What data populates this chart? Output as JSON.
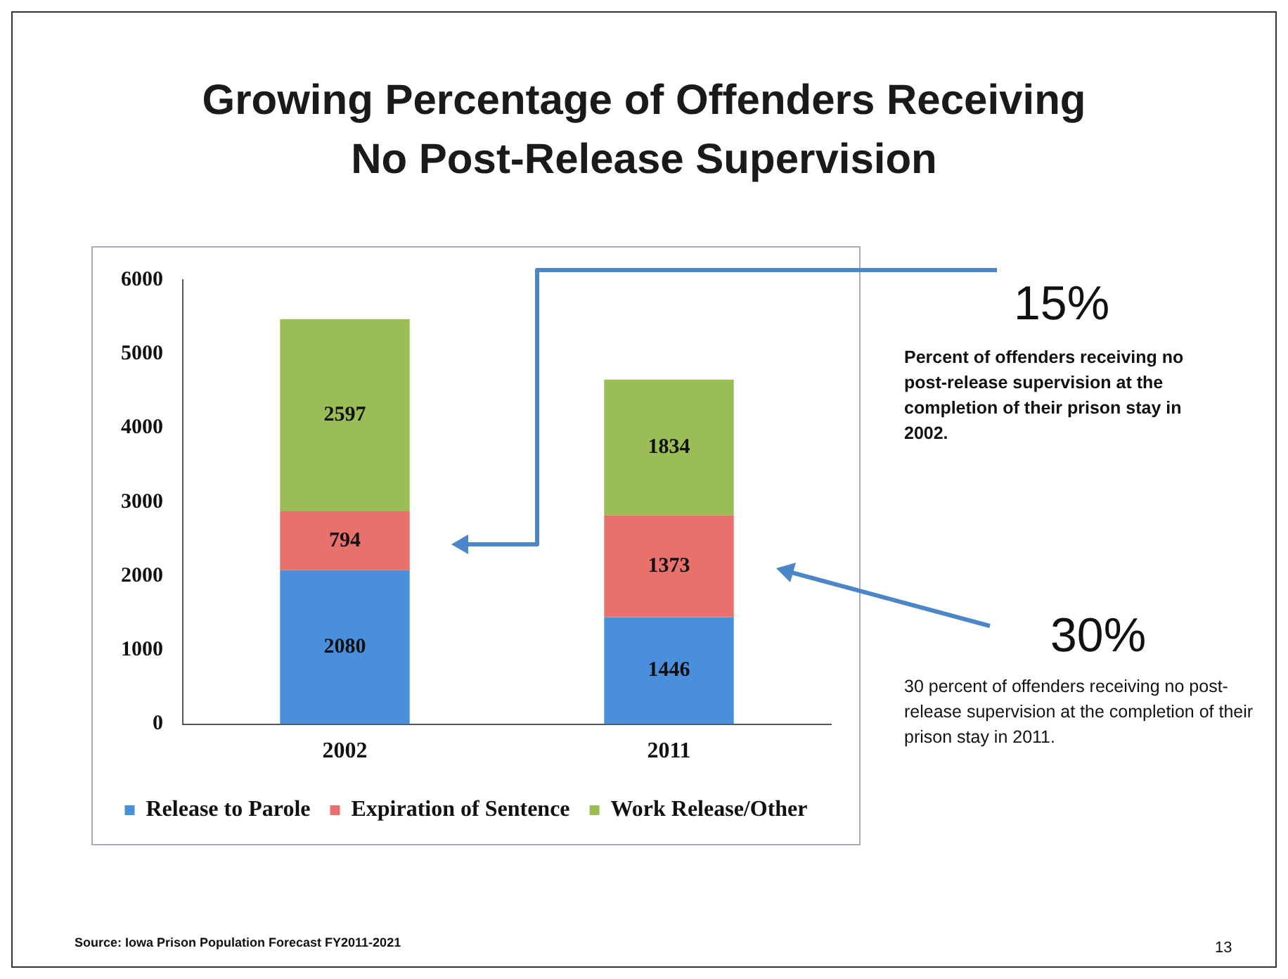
{
  "chart_data": {
    "type": "bar",
    "title": "Growing Percentage of Offenders Receiving No Post-Release Supervision",
    "categories": [
      "2002",
      "2011"
    ],
    "stacked": true,
    "series": [
      {
        "name": "Release to Parole",
        "color": "#4a8fdc",
        "values": [
          2080,
          1446
        ]
      },
      {
        "name": "Expiration of Sentence",
        "color": "#e8716b",
        "values": [
          794,
          1373
        ]
      },
      {
        "name": "Work Release/Other",
        "color": "#9bbd55",
        "values": [
          2597,
          1834
        ]
      }
    ],
    "ylim": [
      0,
      6000
    ],
    "yticks": [
      0,
      1000,
      2000,
      3000,
      4000,
      5000,
      6000
    ],
    "grid": false,
    "legend": "bottom",
    "data_labels": true,
    "annotations": [
      "15%",
      "Percent of offenders receiving no post-release supervision at the completion of their prison stay in 2002.",
      "30%",
      "30 percent of offenders receiving no post-release supervision at the completion of their prison stay in 2011.",
      "Source: Iowa Prison Population Forecast FY2011-2021",
      "13"
    ]
  }
}
